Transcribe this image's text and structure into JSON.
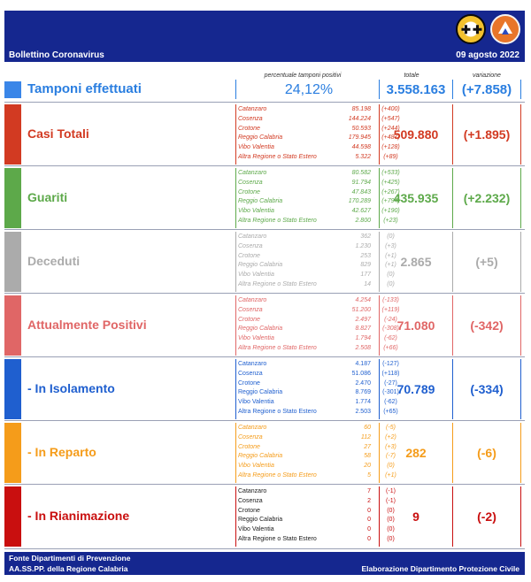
{
  "header": {
    "title": "Bollettino Coronavirus",
    "date": "09 agosto 2022"
  },
  "columns": {
    "pct_label": "percentuale tamponi positivi",
    "total_label": "totale",
    "var_label": "variazione"
  },
  "tamponi": {
    "label": "Tamponi effettuati",
    "pct": "24,12%",
    "total": "3.558.163",
    "variation": "(+7.858)",
    "color": "#3a86e8"
  },
  "sections": [
    {
      "label": "Casi Totali",
      "color": "#d23a22",
      "total": "509.880",
      "variation": "(+1.895)",
      "rows": [
        {
          "name": "Catanzaro",
          "value": "85.198",
          "delta": "(+400)"
        },
        {
          "name": "Cosenza",
          "value": "144.224",
          "delta": "(+547)"
        },
        {
          "name": "Crotone",
          "value": "50.593",
          "delta": "(+244)"
        },
        {
          "name": "Reggio Calabria",
          "value": "179.945",
          "delta": "(+487)"
        },
        {
          "name": "Vibo Valentia",
          "value": "44.598",
          "delta": "(+128)"
        },
        {
          "name": "Altra Regione o Stato Estero",
          "value": "5.322",
          "delta": "(+89)"
        }
      ]
    },
    {
      "label": "Guariti",
      "color": "#5da94a",
      "total": "435.935",
      "variation": "(+2.232)",
      "rows": [
        {
          "name": "Catanzaro",
          "value": "80.582",
          "delta": "(+533)"
        },
        {
          "name": "Cosenza",
          "value": "91.794",
          "delta": "(+425)"
        },
        {
          "name": "Crotone",
          "value": "47.843",
          "delta": "(+267)"
        },
        {
          "name": "Reggio Calabria",
          "value": "170.289",
          "delta": "(+794)"
        },
        {
          "name": "Vibo Valentia",
          "value": "42.627",
          "delta": "(+190)"
        },
        {
          "name": "Altra Regione o Stato Estero",
          "value": "2.800",
          "delta": "(+23)"
        }
      ]
    },
    {
      "label": "Deceduti",
      "color": "#ababab",
      "total": "2.865",
      "variation": "(+5)",
      "rows": [
        {
          "name": "Catanzaro",
          "value": "362",
          "delta": "(0)"
        },
        {
          "name": "Cosenza",
          "value": "1.230",
          "delta": "(+3)"
        },
        {
          "name": "Crotone",
          "value": "253",
          "delta": "(+1)"
        },
        {
          "name": "Reggio Calabria",
          "value": "829",
          "delta": "(+1)"
        },
        {
          "name": "Vibo Valentia",
          "value": "177",
          "delta": "(0)"
        },
        {
          "name": "Altra Regione o Stato Estero",
          "value": "14",
          "delta": "(0)"
        }
      ]
    },
    {
      "label": "Attualmente Positivi",
      "color": "#e06666",
      "total": "71.080",
      "variation": "(-342)",
      "rows": [
        {
          "name": "Catanzaro",
          "value": "4.254",
          "delta": "(-133)"
        },
        {
          "name": "Cosenza",
          "value": "51.200",
          "delta": "(+119)"
        },
        {
          "name": "Crotone",
          "value": "2.497",
          "delta": "(-24)"
        },
        {
          "name": "Reggio Calabria",
          "value": "8.827",
          "delta": "(-308)"
        },
        {
          "name": "Vibo Valentia",
          "value": "1.794",
          "delta": "(-62)"
        },
        {
          "name": "Altra Regione o Stato Estero",
          "value": "2.508",
          "delta": "(+66)"
        }
      ]
    },
    {
      "label": "- In Isolamento",
      "color": "#1f5fcf",
      "total": "70.789",
      "variation": "(-334)",
      "rows": [
        {
          "name": "Catanzaro",
          "value": "4.187",
          "delta": "(-127)"
        },
        {
          "name": "Cosenza",
          "value": "51.086",
          "delta": "(+118)"
        },
        {
          "name": "Crotone",
          "value": "2.470",
          "delta": "(-27)"
        },
        {
          "name": "Reggio Calabria",
          "value": "8.769",
          "delta": "(-301)"
        },
        {
          "name": "Vibo Valentia",
          "value": "1.774",
          "delta": "(-62)"
        },
        {
          "name": "Altra Regione o Stato Estero",
          "value": "2.503",
          "delta": "(+65)"
        }
      ]
    },
    {
      "label": "- In Reparto",
      "color": "#f59c1a",
      "total": "282",
      "variation": "(-6)",
      "rows": [
        {
          "name": "Catanzaro",
          "value": "60",
          "delta": "(-5)"
        },
        {
          "name": "Cosenza",
          "value": "112",
          "delta": "(+2)"
        },
        {
          "name": "Crotone",
          "value": "27",
          "delta": "(+3)"
        },
        {
          "name": "Reggio Calabria",
          "value": "58",
          "delta": "(-7)"
        },
        {
          "name": "Vibo Valentia",
          "value": "20",
          "delta": "(0)"
        },
        {
          "name": "Altra Regione o Stato Estero",
          "value": "5",
          "delta": "(+1)"
        }
      ]
    },
    {
      "label": "- In Rianimazione",
      "color": "#c90f0f",
      "total": "9",
      "variation": "(-2)",
      "rows": [
        {
          "name": "Catanzaro",
          "value": "7",
          "delta": "(-1)"
        },
        {
          "name": "Cosenza",
          "value": "2",
          "delta": "(-1)"
        },
        {
          "name": "Crotone",
          "value": "0",
          "delta": "(0)"
        },
        {
          "name": "Reggio Calabria",
          "value": "0",
          "delta": "(0)"
        },
        {
          "name": "Vibo Valentia",
          "value": "0",
          "delta": "(0)"
        },
        {
          "name": "Altra Regione o Stato Estero",
          "value": "0",
          "delta": "(0)"
        }
      ]
    }
  ],
  "footer": {
    "line1": "Fonte Dipartimenti di Prevenzione",
    "line2": "AA.SS.PP.  della Regione Calabria",
    "right": "Elaborazione Dipartimento Protezione Civile"
  },
  "logos": [
    "regione-calabria-logo",
    "protezione-civile-logo"
  ]
}
